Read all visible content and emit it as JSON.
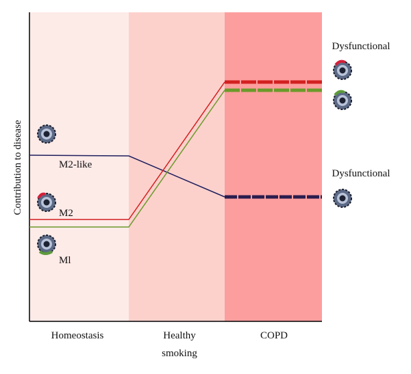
{
  "y_axis_label": "Contribution to disease",
  "stages": [
    [
      "Homeostasis"
    ],
    [
      "Healthy",
      "smoking"
    ],
    [
      "COPD"
    ]
  ],
  "cell_labels": [
    "M2-like",
    "M2",
    "Ml"
  ],
  "outcome_labels": [
    "Dysfunctional",
    "Dysfunctional"
  ]
}
